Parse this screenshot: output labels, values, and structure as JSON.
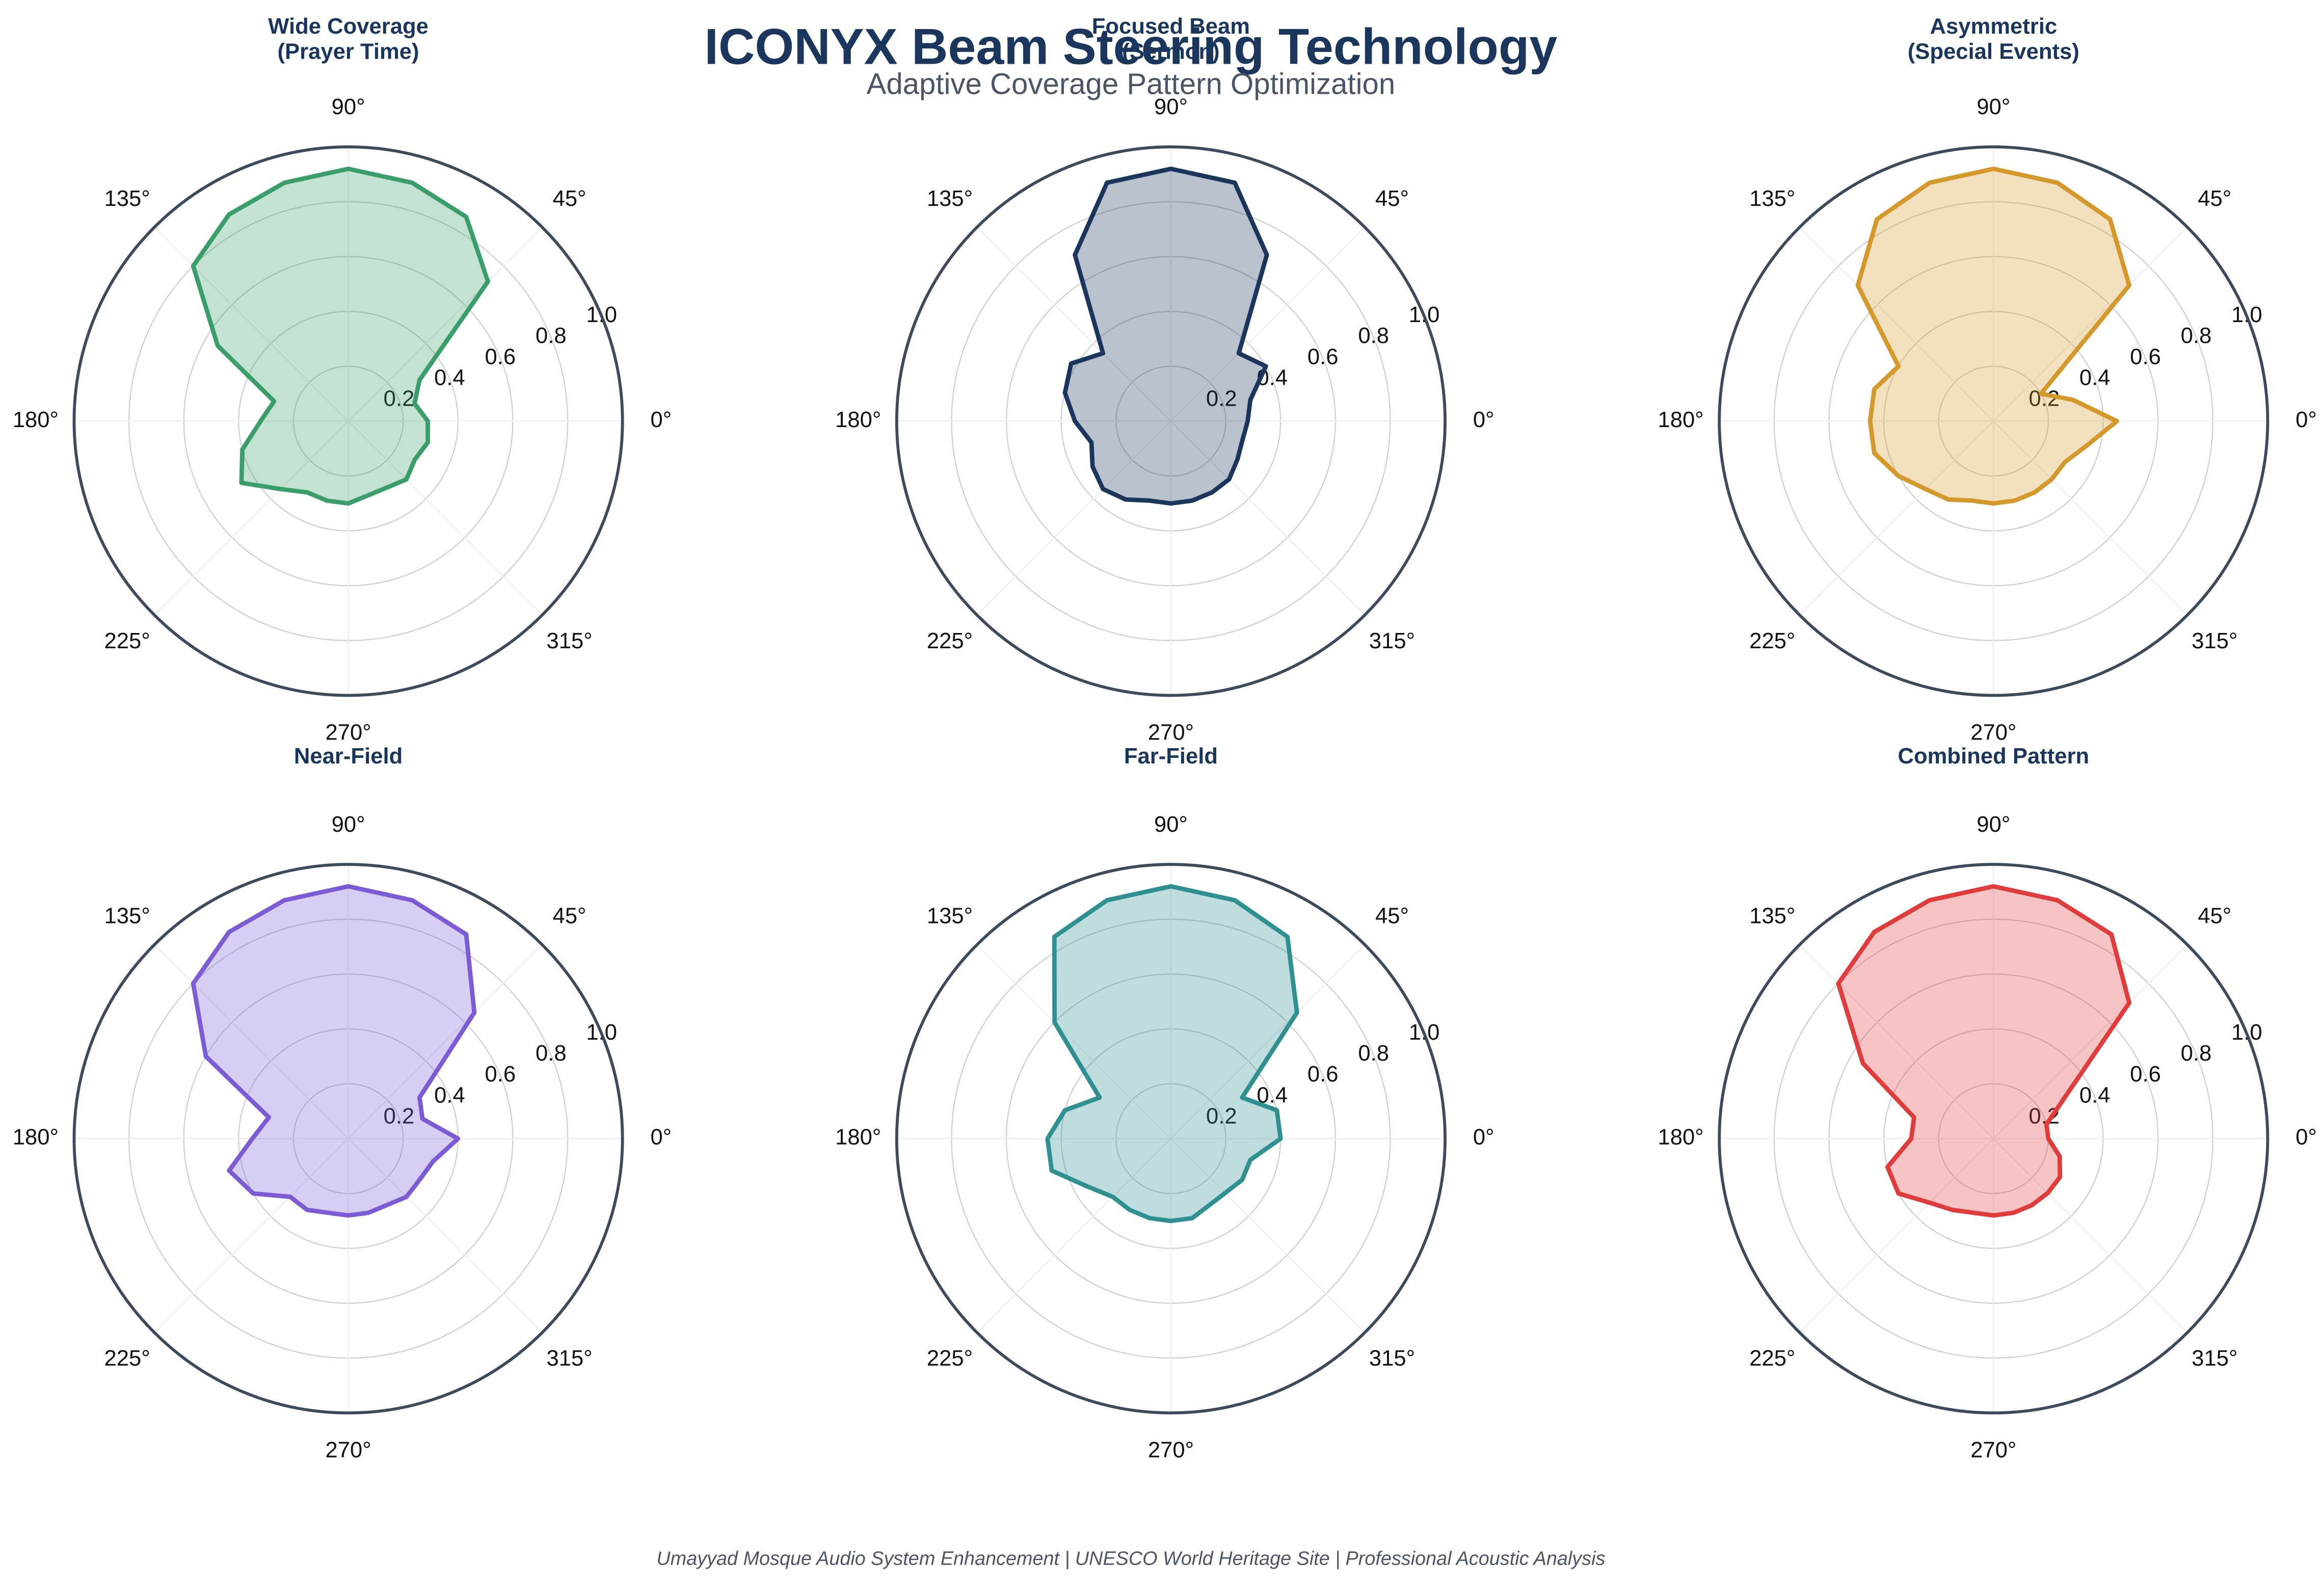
{
  "title": "ICONYX Beam Steering Technology",
  "subtitle": "Adaptive Coverage Pattern Optimization",
  "footer": "Umayyad Mosque Audio System Enhancement | UNESCO World Heritage Site | Professional Acoustic Analysis",
  "chart_data": [
    {
      "type": "polar",
      "title": "Wide Coverage\n(Prayer Time)",
      "color": "#3a9e6a",
      "theta": [
        0,
        15,
        30,
        45,
        60,
        75,
        90,
        105,
        120,
        135,
        150,
        165,
        180,
        195,
        210,
        225,
        240,
        255,
        270,
        285,
        300,
        315,
        330,
        345
      ],
      "values": [
        0.29,
        0.25,
        0.3,
        0.72,
        0.86,
        0.9,
        0.92,
        0.9,
        0.87,
        0.8,
        0.55,
        0.28,
        0.32,
        0.4,
        0.45,
        0.35,
        0.3,
        0.3,
        0.3,
        0.28,
        0.28,
        0.3,
        0.28,
        0.3
      ],
      "ylim": [
        0,
        1
      ],
      "yticks": [
        0.2,
        0.4,
        0.6,
        0.8,
        {
          "value": 1,
          "label": "1.0"
        }
      ],
      "xticks": [
        {
          "value": 0,
          "label": "0°"
        },
        {
          "value": 45,
          "label": "45°"
        },
        {
          "value": 90,
          "label": "90°"
        },
        {
          "value": 135,
          "label": "135°"
        },
        {
          "value": 180,
          "label": "180°"
        },
        {
          "value": 225,
          "label": "225°"
        },
        {
          "value": 270,
          "label": "270°"
        },
        {
          "value": 315,
          "label": "315°"
        }
      ]
    },
    {
      "type": "polar",
      "title": "Focused Beam\n(Sermon)",
      "color": "#1b365d",
      "theta": [
        0,
        15,
        30,
        45,
        60,
        75,
        90,
        105,
        120,
        135,
        150,
        165,
        180,
        195,
        210,
        225,
        240,
        255,
        270,
        285,
        300,
        315,
        330,
        345
      ],
      "values": [
        0.28,
        0.3,
        0.4,
        0.35,
        0.7,
        0.9,
        0.92,
        0.9,
        0.7,
        0.35,
        0.42,
        0.4,
        0.35,
        0.3,
        0.33,
        0.35,
        0.33,
        0.3,
        0.3,
        0.3,
        0.3,
        0.3,
        0.28,
        0.27
      ],
      "ylim": [
        0,
        1
      ],
      "yticks": [
        0.2,
        0.4,
        0.6,
        0.8,
        {
          "value": 1,
          "label": "1.0"
        }
      ],
      "xticks": [
        {
          "value": 0,
          "label": "0°"
        },
        {
          "value": 45,
          "label": "45°"
        },
        {
          "value": 90,
          "label": "90°"
        },
        {
          "value": 135,
          "label": "135°"
        },
        {
          "value": 180,
          "label": "180°"
        },
        {
          "value": 225,
          "label": "225°"
        },
        {
          "value": 270,
          "label": "270°"
        },
        {
          "value": 315,
          "label": "315°"
        }
      ]
    },
    {
      "type": "polar",
      "title": "Asymmetric\n(Special Events)",
      "color": "#d4992a",
      "theta": [
        0,
        15,
        30,
        45,
        60,
        75,
        90,
        105,
        120,
        135,
        150,
        165,
        180,
        195,
        210,
        225,
        240,
        255,
        270,
        285,
        300,
        315,
        330,
        345
      ],
      "values": [
        0.45,
        0.3,
        0.2,
        0.7,
        0.85,
        0.9,
        0.92,
        0.9,
        0.85,
        0.7,
        0.4,
        0.45,
        0.45,
        0.45,
        0.4,
        0.35,
        0.33,
        0.3,
        0.3,
        0.3,
        0.3,
        0.3,
        0.3,
        0.35
      ],
      "ylim": [
        0,
        1
      ],
      "yticks": [
        0.2,
        0.4,
        0.6,
        0.8,
        {
          "value": 1,
          "label": "1.0"
        }
      ],
      "xticks": [
        {
          "value": 0,
          "label": "0°"
        },
        {
          "value": 45,
          "label": "45°"
        },
        {
          "value": 90,
          "label": "90°"
        },
        {
          "value": 135,
          "label": "135°"
        },
        {
          "value": 180,
          "label": "180°"
        },
        {
          "value": 225,
          "label": "225°"
        },
        {
          "value": 270,
          "label": "270°"
        },
        {
          "value": 315,
          "label": "315°"
        }
      ]
    },
    {
      "type": "polar",
      "title": "Near-Field",
      "color": "#7b5cd6",
      "theta": [
        0,
        15,
        30,
        45,
        60,
        75,
        90,
        105,
        120,
        135,
        150,
        165,
        180,
        195,
        210,
        225,
        240,
        255,
        270,
        285,
        300,
        315,
        330,
        345
      ],
      "values": [
        0.4,
        0.28,
        0.3,
        0.65,
        0.86,
        0.9,
        0.92,
        0.9,
        0.87,
        0.8,
        0.6,
        0.3,
        0.35,
        0.45,
        0.4,
        0.3,
        0.3,
        0.28,
        0.28,
        0.28,
        0.28,
        0.3,
        0.3,
        0.32
      ],
      "ylim": [
        0,
        1
      ],
      "yticks": [
        0.2,
        0.4,
        0.6,
        0.8,
        {
          "value": 1,
          "label": "1.0"
        }
      ],
      "xticks": [
        {
          "value": 0,
          "label": "0°"
        },
        {
          "value": 45,
          "label": "45°"
        },
        {
          "value": 90,
          "label": "90°"
        },
        {
          "value": 135,
          "label": "135°"
        },
        {
          "value": 180,
          "label": "180°"
        },
        {
          "value": 225,
          "label": "225°"
        },
        {
          "value": 270,
          "label": "270°"
        },
        {
          "value": 315,
          "label": "315°"
        }
      ]
    },
    {
      "type": "polar",
      "title": "Far-Field",
      "color": "#2e9090",
      "theta": [
        0,
        15,
        30,
        45,
        60,
        75,
        90,
        105,
        120,
        135,
        150,
        165,
        180,
        195,
        210,
        225,
        240,
        255,
        270,
        285,
        300,
        315,
        330,
        345
      ],
      "values": [
        0.4,
        0.4,
        0.3,
        0.65,
        0.85,
        0.9,
        0.92,
        0.9,
        0.85,
        0.6,
        0.3,
        0.4,
        0.45,
        0.45,
        0.35,
        0.3,
        0.3,
        0.3,
        0.3,
        0.3,
        0.28,
        0.28,
        0.3,
        0.3
      ],
      "ylim": [
        0,
        1
      ],
      "yticks": [
        0.2,
        0.4,
        0.6,
        0.8,
        {
          "value": 1,
          "label": "1.0"
        }
      ],
      "xticks": [
        {
          "value": 0,
          "label": "0°"
        },
        {
          "value": 45,
          "label": "45°"
        },
        {
          "value": 90,
          "label": "90°"
        },
        {
          "value": 135,
          "label": "135°"
        },
        {
          "value": 180,
          "label": "180°"
        },
        {
          "value": 225,
          "label": "225°"
        },
        {
          "value": 270,
          "label": "270°"
        },
        {
          "value": 315,
          "label": "315°"
        }
      ]
    },
    {
      "type": "polar",
      "title": "Combined Pattern",
      "color": "#e03c3c",
      "theta": [
        0,
        15,
        30,
        45,
        60,
        75,
        90,
        105,
        120,
        135,
        150,
        165,
        180,
        195,
        210,
        225,
        240,
        255,
        270,
        285,
        300,
        315,
        330,
        345
      ],
      "values": [
        0.2,
        0.2,
        0.3,
        0.7,
        0.86,
        0.9,
        0.92,
        0.9,
        0.87,
        0.8,
        0.55,
        0.3,
        0.3,
        0.4,
        0.4,
        0.33,
        0.3,
        0.28,
        0.28,
        0.28,
        0.28,
        0.28,
        0.28,
        0.25
      ],
      "ylim": [
        0,
        1
      ],
      "yticks": [
        0.2,
        0.4,
        0.6,
        0.8,
        {
          "value": 1,
          "label": "1.0"
        }
      ],
      "xticks": [
        {
          "value": 0,
          "label": "0°"
        },
        {
          "value": 45,
          "label": "45°"
        },
        {
          "value": 90,
          "label": "90°"
        },
        {
          "value": 135,
          "label": "135°"
        },
        {
          "value": 180,
          "label": "180°"
        },
        {
          "value": 225,
          "label": "225°"
        },
        {
          "value": 270,
          "label": "270°"
        },
        {
          "value": 315,
          "label": "315°"
        }
      ]
    }
  ]
}
